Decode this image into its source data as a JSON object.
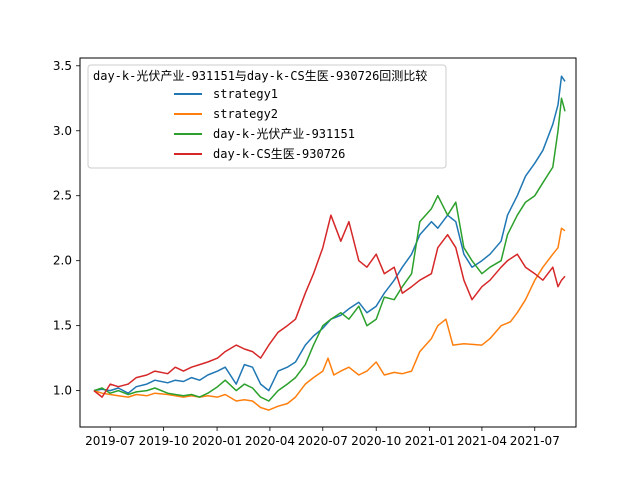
{
  "chart_data": {
    "type": "line",
    "title": "",
    "xlabel": "",
    "ylabel": "",
    "xlim": [
      "2019-05-10",
      "2021-09-10"
    ],
    "ylim": [
      0.72,
      3.56
    ],
    "grid": false,
    "legend": {
      "title": "day-k-光伏产业-931151与day-k-CS生医-930726回测比较",
      "placement": "top-left"
    },
    "x_ticks": [
      {
        "date": "2019-07-01",
        "label": "2019-07"
      },
      {
        "date": "2019-10-01",
        "label": "2019-10"
      },
      {
        "date": "2020-01-01",
        "label": "2020-01"
      },
      {
        "date": "2020-04-01",
        "label": "2020-04"
      },
      {
        "date": "2020-07-01",
        "label": "2020-07"
      },
      {
        "date": "2020-10-01",
        "label": "2020-10"
      },
      {
        "date": "2021-01-01",
        "label": "2021-01"
      },
      {
        "date": "2021-04-01",
        "label": "2021-04"
      },
      {
        "date": "2021-07-01",
        "label": "2021-07"
      }
    ],
    "y_ticks": [
      {
        "value": 1.0,
        "label": "1.0"
      },
      {
        "value": 1.5,
        "label": "1.5"
      },
      {
        "value": 2.0,
        "label": "2.0"
      },
      {
        "value": 2.5,
        "label": "2.5"
      },
      {
        "value": 3.0,
        "label": "3.0"
      },
      {
        "value": 3.5,
        "label": "3.5"
      }
    ],
    "series": [
      {
        "name": "strategy1",
        "color": "#1f77b4",
        "points": [
          [
            "2019-06-03",
            1.0
          ],
          [
            "2019-06-17",
            1.01
          ],
          [
            "2019-07-01",
            1.0
          ],
          [
            "2019-07-15",
            1.02
          ],
          [
            "2019-08-01",
            0.98
          ],
          [
            "2019-08-15",
            1.03
          ],
          [
            "2019-09-02",
            1.05
          ],
          [
            "2019-09-16",
            1.08
          ],
          [
            "2019-10-08",
            1.06
          ],
          [
            "2019-10-21",
            1.08
          ],
          [
            "2019-11-04",
            1.07
          ],
          [
            "2019-11-18",
            1.1
          ],
          [
            "2019-12-02",
            1.08
          ],
          [
            "2019-12-16",
            1.12
          ],
          [
            "2020-01-02",
            1.15
          ],
          [
            "2020-01-15",
            1.18
          ],
          [
            "2020-02-03",
            1.05
          ],
          [
            "2020-02-17",
            1.2
          ],
          [
            "2020-03-02",
            1.18
          ],
          [
            "2020-03-16",
            1.05
          ],
          [
            "2020-03-30",
            1.0
          ],
          [
            "2020-04-15",
            1.15
          ],
          [
            "2020-05-01",
            1.18
          ],
          [
            "2020-05-15",
            1.22
          ],
          [
            "2020-06-01",
            1.35
          ],
          [
            "2020-06-15",
            1.42
          ],
          [
            "2020-07-01",
            1.48
          ],
          [
            "2020-07-15",
            1.55
          ],
          [
            "2020-08-01",
            1.58
          ],
          [
            "2020-08-15",
            1.63
          ],
          [
            "2020-09-01",
            1.68
          ],
          [
            "2020-09-15",
            1.6
          ],
          [
            "2020-10-01",
            1.65
          ],
          [
            "2020-10-15",
            1.75
          ],
          [
            "2020-11-01",
            1.85
          ],
          [
            "2020-11-15",
            1.95
          ],
          [
            "2020-12-01",
            2.05
          ],
          [
            "2020-12-15",
            2.2
          ],
          [
            "2021-01-04",
            2.3
          ],
          [
            "2021-01-15",
            2.25
          ],
          [
            "2021-02-01",
            2.35
          ],
          [
            "2021-02-15",
            2.3
          ],
          [
            "2021-03-01",
            2.05
          ],
          [
            "2021-03-15",
            1.95
          ],
          [
            "2021-04-01",
            2.0
          ],
          [
            "2021-04-15",
            2.05
          ],
          [
            "2021-05-04",
            2.15
          ],
          [
            "2021-05-15",
            2.35
          ],
          [
            "2021-06-01",
            2.5
          ],
          [
            "2021-06-15",
            2.65
          ],
          [
            "2021-07-01",
            2.75
          ],
          [
            "2021-07-15",
            2.85
          ],
          [
            "2021-08-01",
            3.05
          ],
          [
            "2021-08-10",
            3.2
          ],
          [
            "2021-08-16",
            3.42
          ],
          [
            "2021-08-22",
            3.38
          ]
        ]
      },
      {
        "name": "strategy2",
        "color": "#ff7f0e",
        "points": [
          [
            "2019-06-03",
            1.0
          ],
          [
            "2019-06-17",
            0.98
          ],
          [
            "2019-07-01",
            0.97
          ],
          [
            "2019-07-15",
            0.96
          ],
          [
            "2019-08-01",
            0.95
          ],
          [
            "2019-08-15",
            0.97
          ],
          [
            "2019-09-02",
            0.96
          ],
          [
            "2019-09-16",
            0.98
          ],
          [
            "2019-10-08",
            0.97
          ],
          [
            "2019-10-21",
            0.96
          ],
          [
            "2019-11-04",
            0.95
          ],
          [
            "2019-11-18",
            0.96
          ],
          [
            "2019-12-02",
            0.95
          ],
          [
            "2019-12-16",
            0.96
          ],
          [
            "2020-01-02",
            0.95
          ],
          [
            "2020-01-15",
            0.97
          ],
          [
            "2020-02-03",
            0.92
          ],
          [
            "2020-02-17",
            0.93
          ],
          [
            "2020-03-02",
            0.92
          ],
          [
            "2020-03-16",
            0.87
          ],
          [
            "2020-03-30",
            0.85
          ],
          [
            "2020-04-15",
            0.88
          ],
          [
            "2020-05-01",
            0.9
          ],
          [
            "2020-05-15",
            0.95
          ],
          [
            "2020-06-01",
            1.05
          ],
          [
            "2020-06-15",
            1.1
          ],
          [
            "2020-07-01",
            1.15
          ],
          [
            "2020-07-10",
            1.25
          ],
          [
            "2020-07-20",
            1.12
          ],
          [
            "2020-08-01",
            1.15
          ],
          [
            "2020-08-15",
            1.18
          ],
          [
            "2020-09-01",
            1.12
          ],
          [
            "2020-09-15",
            1.15
          ],
          [
            "2020-10-01",
            1.22
          ],
          [
            "2020-10-15",
            1.12
          ],
          [
            "2020-11-01",
            1.14
          ],
          [
            "2020-11-15",
            1.13
          ],
          [
            "2020-12-01",
            1.15
          ],
          [
            "2020-12-15",
            1.3
          ],
          [
            "2021-01-04",
            1.4
          ],
          [
            "2021-01-15",
            1.5
          ],
          [
            "2021-01-29",
            1.55
          ],
          [
            "2021-02-10",
            1.35
          ],
          [
            "2021-03-01",
            1.36
          ],
          [
            "2021-04-01",
            1.35
          ],
          [
            "2021-04-15",
            1.4
          ],
          [
            "2021-05-04",
            1.5
          ],
          [
            "2021-05-20",
            1.53
          ],
          [
            "2021-06-01",
            1.6
          ],
          [
            "2021-06-15",
            1.7
          ],
          [
            "2021-07-01",
            1.85
          ],
          [
            "2021-07-15",
            1.95
          ],
          [
            "2021-08-01",
            2.05
          ],
          [
            "2021-08-10",
            2.1
          ],
          [
            "2021-08-16",
            2.25
          ],
          [
            "2021-08-22",
            2.23
          ]
        ]
      },
      {
        "name": "day-k-光伏产业-931151",
        "color": "#2ca02c",
        "points": [
          [
            "2019-06-03",
            1.0
          ],
          [
            "2019-06-17",
            1.02
          ],
          [
            "2019-07-01",
            0.98
          ],
          [
            "2019-07-15",
            1.0
          ],
          [
            "2019-08-01",
            0.97
          ],
          [
            "2019-08-15",
            0.99
          ],
          [
            "2019-09-02",
            1.0
          ],
          [
            "2019-09-16",
            1.02
          ],
          [
            "2019-10-08",
            0.98
          ],
          [
            "2019-10-21",
            0.97
          ],
          [
            "2019-11-04",
            0.96
          ],
          [
            "2019-11-18",
            0.97
          ],
          [
            "2019-12-02",
            0.95
          ],
          [
            "2019-12-16",
            0.98
          ],
          [
            "2020-01-02",
            1.03
          ],
          [
            "2020-01-15",
            1.08
          ],
          [
            "2020-02-03",
            1.0
          ],
          [
            "2020-02-17",
            1.05
          ],
          [
            "2020-03-02",
            1.02
          ],
          [
            "2020-03-16",
            0.95
          ],
          [
            "2020-03-30",
            0.92
          ],
          [
            "2020-04-15",
            1.0
          ],
          [
            "2020-05-01",
            1.05
          ],
          [
            "2020-05-15",
            1.1
          ],
          [
            "2020-06-01",
            1.2
          ],
          [
            "2020-06-15",
            1.35
          ],
          [
            "2020-07-01",
            1.5
          ],
          [
            "2020-07-15",
            1.55
          ],
          [
            "2020-08-01",
            1.6
          ],
          [
            "2020-08-15",
            1.55
          ],
          [
            "2020-09-01",
            1.65
          ],
          [
            "2020-09-15",
            1.5
          ],
          [
            "2020-10-01",
            1.55
          ],
          [
            "2020-10-15",
            1.72
          ],
          [
            "2020-11-01",
            1.7
          ],
          [
            "2020-11-15",
            1.8
          ],
          [
            "2020-12-01",
            1.9
          ],
          [
            "2020-12-15",
            2.3
          ],
          [
            "2021-01-04",
            2.4
          ],
          [
            "2021-01-15",
            2.5
          ],
          [
            "2021-02-01",
            2.35
          ],
          [
            "2021-02-15",
            2.45
          ],
          [
            "2021-03-01",
            2.1
          ],
          [
            "2021-03-15",
            2.0
          ],
          [
            "2021-04-01",
            1.9
          ],
          [
            "2021-04-15",
            1.95
          ],
          [
            "2021-05-04",
            2.0
          ],
          [
            "2021-05-15",
            2.2
          ],
          [
            "2021-06-01",
            2.35
          ],
          [
            "2021-06-15",
            2.45
          ],
          [
            "2021-07-01",
            2.5
          ],
          [
            "2021-07-15",
            2.6
          ],
          [
            "2021-08-01",
            2.72
          ],
          [
            "2021-08-10",
            3.0
          ],
          [
            "2021-08-16",
            3.25
          ],
          [
            "2021-08-22",
            3.15
          ]
        ]
      },
      {
        "name": "day-k-CS生医-930726",
        "color": "#d62728",
        "points": [
          [
            "2019-06-03",
            1.0
          ],
          [
            "2019-06-17",
            0.95
          ],
          [
            "2019-07-01",
            1.05
          ],
          [
            "2019-07-15",
            1.03
          ],
          [
            "2019-08-01",
            1.05
          ],
          [
            "2019-08-15",
            1.1
          ],
          [
            "2019-09-02",
            1.12
          ],
          [
            "2019-09-16",
            1.15
          ],
          [
            "2019-10-08",
            1.13
          ],
          [
            "2019-10-21",
            1.18
          ],
          [
            "2019-11-04",
            1.15
          ],
          [
            "2019-11-18",
            1.18
          ],
          [
            "2019-12-02",
            1.2
          ],
          [
            "2019-12-16",
            1.22
          ],
          [
            "2020-01-02",
            1.25
          ],
          [
            "2020-01-15",
            1.3
          ],
          [
            "2020-02-03",
            1.35
          ],
          [
            "2020-02-17",
            1.32
          ],
          [
            "2020-03-02",
            1.3
          ],
          [
            "2020-03-16",
            1.25
          ],
          [
            "2020-03-30",
            1.35
          ],
          [
            "2020-04-15",
            1.45
          ],
          [
            "2020-05-01",
            1.5
          ],
          [
            "2020-05-15",
            1.55
          ],
          [
            "2020-06-01",
            1.75
          ],
          [
            "2020-06-15",
            1.9
          ],
          [
            "2020-07-01",
            2.1
          ],
          [
            "2020-07-15",
            2.35
          ],
          [
            "2020-08-01",
            2.15
          ],
          [
            "2020-08-15",
            2.3
          ],
          [
            "2020-09-01",
            2.0
          ],
          [
            "2020-09-15",
            1.95
          ],
          [
            "2020-10-01",
            2.05
          ],
          [
            "2020-10-15",
            1.9
          ],
          [
            "2020-11-01",
            1.95
          ],
          [
            "2020-11-15",
            1.75
          ],
          [
            "2020-12-01",
            1.8
          ],
          [
            "2020-12-15",
            1.85
          ],
          [
            "2021-01-04",
            1.9
          ],
          [
            "2021-01-15",
            2.1
          ],
          [
            "2021-02-01",
            2.2
          ],
          [
            "2021-02-15",
            2.1
          ],
          [
            "2021-03-01",
            1.85
          ],
          [
            "2021-03-15",
            1.7
          ],
          [
            "2021-04-01",
            1.8
          ],
          [
            "2021-04-15",
            1.85
          ],
          [
            "2021-05-04",
            1.95
          ],
          [
            "2021-05-15",
            2.0
          ],
          [
            "2021-06-01",
            2.05
          ],
          [
            "2021-06-15",
            1.95
          ],
          [
            "2021-07-01",
            1.9
          ],
          [
            "2021-07-15",
            1.85
          ],
          [
            "2021-08-01",
            1.95
          ],
          [
            "2021-08-10",
            1.8
          ],
          [
            "2021-08-16",
            1.85
          ],
          [
            "2021-08-22",
            1.88
          ]
        ]
      }
    ]
  }
}
